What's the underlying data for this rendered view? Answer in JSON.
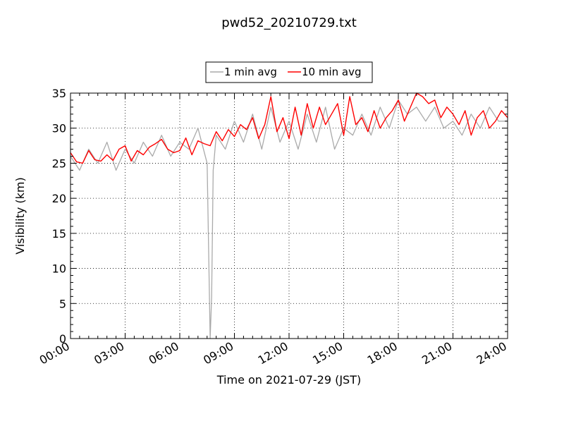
{
  "chart_data": {
    "type": "line",
    "title": "pwd52_20210729.txt",
    "xlabel": "Time on 2021-07-29 (JST)",
    "ylabel": "Visibility (km)",
    "xlim": [
      "00:00",
      "24:00"
    ],
    "ylim": [
      0,
      35
    ],
    "grid": true,
    "legend_position": "top-center",
    "x_ticks": [
      "00:00",
      "03:00",
      "06:00",
      "09:00",
      "12:00",
      "15:00",
      "18:00",
      "21:00",
      "24:00"
    ],
    "y_ticks": [
      "0",
      "5",
      "10",
      "15",
      "20",
      "25",
      "30",
      "35"
    ],
    "series": [
      {
        "name": "1 min avg",
        "color": "#aaaaaa",
        "x": [
          "00:00",
          "00:30",
          "01:00",
          "01:30",
          "02:00",
          "02:30",
          "03:00",
          "03:30",
          "04:00",
          "04:30",
          "05:00",
          "05:30",
          "06:00",
          "06:30",
          "07:00",
          "07:30",
          "07:40",
          "07:45",
          "07:50",
          "08:00",
          "08:30",
          "09:00",
          "09:30",
          "10:00",
          "10:30",
          "11:00",
          "11:30",
          "12:00",
          "12:30",
          "13:00",
          "13:30",
          "14:00",
          "14:30",
          "15:00",
          "15:30",
          "16:00",
          "16:30",
          "17:00",
          "17:30",
          "18:00",
          "18:30",
          "19:00",
          "19:30",
          "20:00",
          "20:30",
          "21:00",
          "21:30",
          "22:00",
          "22:30",
          "23:00",
          "23:30",
          "24:00"
        ],
        "values": [
          26,
          24,
          27,
          25,
          28,
          24,
          27,
          25,
          28,
          26,
          29,
          26,
          28,
          27,
          30,
          25,
          0,
          6,
          24,
          29,
          27,
          31,
          28,
          32,
          27,
          33,
          28,
          31,
          27,
          32,
          28,
          33,
          27,
          30,
          29,
          32,
          29,
          33,
          30,
          34,
          32,
          33,
          31,
          33,
          30,
          31,
          29,
          32,
          30,
          33,
          31,
          31
        ]
      },
      {
        "name": "10 min avg",
        "color": "#ff0000",
        "x": [
          "00:00",
          "00:20",
          "00:40",
          "01:00",
          "01:20",
          "01:40",
          "02:00",
          "02:20",
          "02:40",
          "03:00",
          "03:20",
          "03:40",
          "04:00",
          "04:20",
          "04:40",
          "05:00",
          "05:20",
          "05:40",
          "06:00",
          "06:20",
          "06:40",
          "07:00",
          "07:20",
          "07:40",
          "08:00",
          "08:20",
          "08:40",
          "09:00",
          "09:20",
          "09:40",
          "10:00",
          "10:20",
          "10:40",
          "11:00",
          "11:20",
          "11:40",
          "12:00",
          "12:20",
          "12:40",
          "13:00",
          "13:20",
          "13:40",
          "14:00",
          "14:20",
          "14:40",
          "15:00",
          "15:20",
          "15:40",
          "16:00",
          "16:20",
          "16:40",
          "17:00",
          "17:20",
          "17:40",
          "18:00",
          "18:20",
          "18:40",
          "19:00",
          "19:20",
          "19:40",
          "20:00",
          "20:20",
          "20:40",
          "21:00",
          "21:20",
          "21:40",
          "22:00",
          "22:20",
          "22:40",
          "23:00",
          "23:20",
          "23:40",
          "24:00"
        ],
        "values": [
          26.5,
          25.2,
          25.0,
          26.8,
          25.5,
          25.3,
          26.2,
          25.4,
          27.0,
          27.5,
          25.3,
          26.8,
          26.2,
          27.3,
          27.8,
          28.4,
          27.0,
          26.5,
          26.8,
          28.6,
          26.2,
          28.2,
          27.8,
          27.5,
          29.5,
          28.2,
          29.8,
          28.8,
          30.5,
          29.8,
          31.5,
          28.5,
          30.5,
          34.5,
          29.5,
          31.5,
          28.5,
          33.0,
          29.0,
          33.5,
          30.0,
          33.0,
          30.5,
          32.0,
          33.5,
          29.0,
          34.5,
          30.5,
          31.5,
          29.5,
          32.5,
          30.0,
          31.5,
          32.5,
          34.0,
          31.0,
          33.0,
          35.0,
          34.5,
          33.5,
          34.0,
          31.5,
          33.0,
          32.0,
          30.5,
          32.5,
          29.0,
          31.5,
          32.5,
          30.0,
          31.0,
          32.5,
          31.5
        ]
      }
    ]
  }
}
